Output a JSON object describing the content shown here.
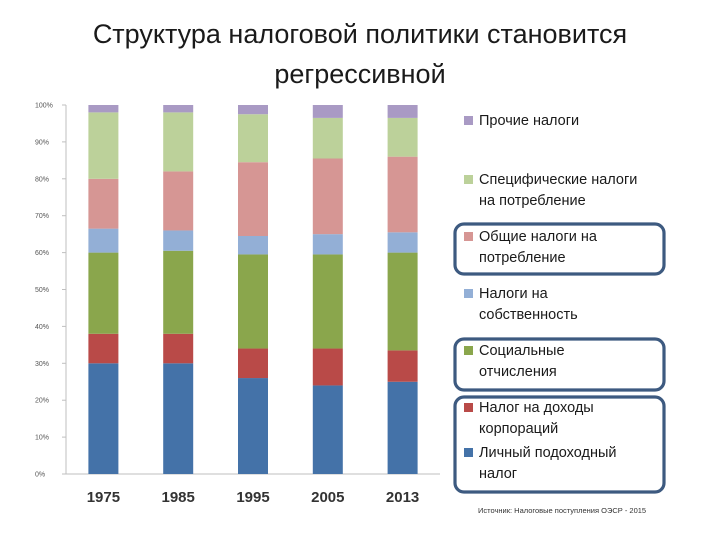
{
  "title": "Структура налоговой политики становится регрессивной",
  "source": "Источник: Налоговые поступления ОЭСР - 2015",
  "chart_data": {
    "type": "bar",
    "stacked": true,
    "categories": [
      "1975",
      "1985",
      "1995",
      "2005",
      "2013"
    ],
    "y_ticks": [
      "0%",
      "10%",
      "20%",
      "30%",
      "40%",
      "50%",
      "60%",
      "70%",
      "80%",
      "90%",
      "100%"
    ],
    "ylim": [
      0,
      100
    ],
    "grid": false,
    "legend_position": "right",
    "series": [
      {
        "name": "Личный подоходный налог",
        "color": "#4472a8",
        "values": [
          30,
          30,
          26,
          24,
          25
        ]
      },
      {
        "name": "Налог на доходы корпораций",
        "color": "#b94a48",
        "values": [
          8,
          8,
          8,
          10,
          8.5
        ]
      },
      {
        "name": "Социальные отчисления",
        "color": "#8aa64c",
        "values": [
          22,
          22.5,
          25.5,
          25.5,
          26.5
        ]
      },
      {
        "name": "Налоги на собственность",
        "color": "#93afd6",
        "values": [
          6.5,
          5.5,
          5,
          5.5,
          5.5
        ]
      },
      {
        "name": "Общие налоги на потребление",
        "color": "#d69694",
        "values": [
          13.5,
          16,
          20,
          20.5,
          20.5
        ]
      },
      {
        "name": "Специфические налоги на потребление",
        "color": "#bcd19a",
        "values": [
          18,
          16,
          13,
          11,
          10.5
        ]
      },
      {
        "name": "Прочие налоги",
        "color": "#a99ac4",
        "values": [
          2,
          2,
          2.5,
          3.5,
          3.5
        ]
      }
    ],
    "legend": [
      {
        "lines": [
          "Прочие налоги"
        ],
        "series": 6,
        "highlighted": false
      },
      {
        "lines": [
          "Специфические налоги",
          "на потребление"
        ],
        "series": 5,
        "highlighted": false
      },
      {
        "lines": [
          "Общие налоги на",
          "потребление"
        ],
        "series": 4,
        "highlighted": true
      },
      {
        "lines": [
          "Налоги на",
          "собственность"
        ],
        "series": 3,
        "highlighted": false
      },
      {
        "lines": [
          "Социальные",
          "отчисления"
        ],
        "series": 2,
        "highlighted": true
      },
      {
        "lines": [
          "Налог на доходы",
          "корпораций"
        ],
        "series": 1,
        "highlighted": true
      },
      {
        "lines": [
          "Личный подоходный",
          "налог"
        ],
        "series": 0,
        "highlighted": true
      }
    ],
    "highlight_color": "#3d5a80"
  }
}
